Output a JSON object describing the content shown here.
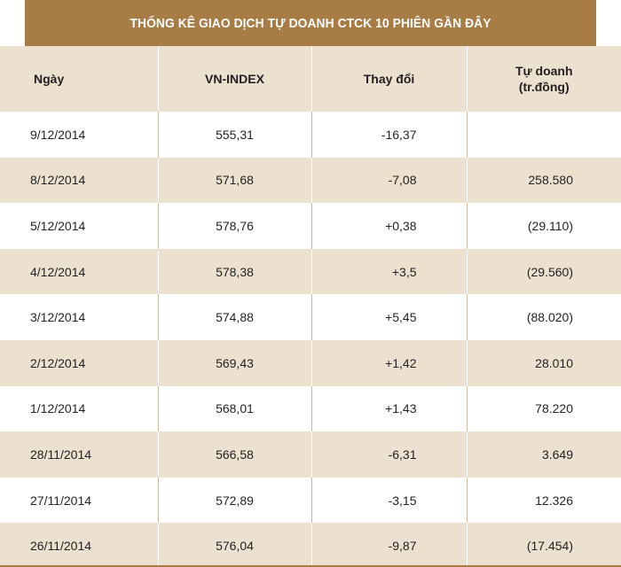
{
  "title": "THỐNG KÊ GIAO DỊCH TỰ DOANH CTCK 10 PHIÊN GẦN ĐÂY",
  "headers": {
    "date": "Ngày",
    "vnindex": "VN-INDEX",
    "change": "Thay đổi",
    "proprietary_line1": "Tự doanh",
    "proprietary_line2": "(tr.đồng)"
  },
  "rows": [
    {
      "date": "9/12/2014",
      "vnindex": "555,31",
      "change": "-16,37",
      "proprietary": ""
    },
    {
      "date": "8/12/2014",
      "vnindex": "571,68",
      "change": "-7,08",
      "proprietary": "258.580"
    },
    {
      "date": "5/12/2014",
      "vnindex": "578,76",
      "change": "+0,38",
      "proprietary": "(29.110)"
    },
    {
      "date": "4/12/2014",
      "vnindex": "578,38",
      "change": "+3,5",
      "proprietary": "(29.560)"
    },
    {
      "date": "3/12/2014",
      "vnindex": "574,88",
      "change": "+5,45",
      "proprietary": "(88.020)"
    },
    {
      "date": "2/12/2014",
      "vnindex": "569,43",
      "change": "+1,42",
      "proprietary": "28.010"
    },
    {
      "date": "1/12/2014",
      "vnindex": "568,01",
      "change": "+1,43",
      "proprietary": "78.220"
    },
    {
      "date": "28/11/2014",
      "vnindex": "566,58",
      "change": "-6,31",
      "proprietary": "3.649"
    },
    {
      "date": "27/11/2014",
      "vnindex": "572,89",
      "change": "-3,15",
      "proprietary": "12.326"
    },
    {
      "date": "26/11/2014",
      "vnindex": "576,04",
      "change": "-9,87",
      "proprietary": "(17.454)"
    }
  ],
  "colors": {
    "title_bg": "#a87c45",
    "stripe_bg": "#ece0cf",
    "text": "#231f20"
  }
}
